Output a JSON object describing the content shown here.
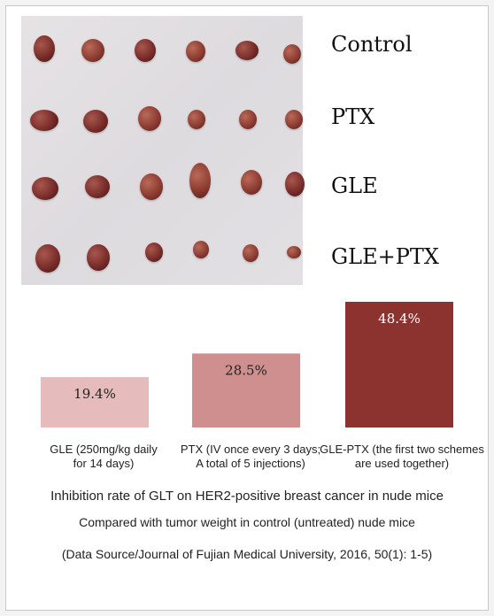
{
  "photo": {
    "row_labels": [
      "Control",
      "PTX",
      "GLE",
      "GLE+PTX"
    ]
  },
  "chart_data": {
    "type": "bar",
    "categories": [
      [
        "GLE (250mg/kg daily",
        "for 14 days)"
      ],
      [
        "PTX (IV once every 3 days;",
        "A total of 5 injections)"
      ],
      [
        "GLE-PTX (the first two schemes",
        "are used together)"
      ]
    ],
    "values": [
      19.4,
      28.5,
      48.4
    ],
    "value_labels": [
      "19.4%",
      "28.5%",
      "48.4%"
    ],
    "colors": [
      "#e6bbbc",
      "#cf8f8f",
      "#8c3330"
    ],
    "ylim": [
      0,
      48.4
    ]
  },
  "captions": {
    "title": "Inhibition rate of GLT on HER2-positive breast cancer in nude mice",
    "subtitle": "Compared with tumor weight in control (untreated) nude mice",
    "source": "(Data Source/Journal of Fujian Medical University, 2016, 50(1): 1-5)"
  }
}
